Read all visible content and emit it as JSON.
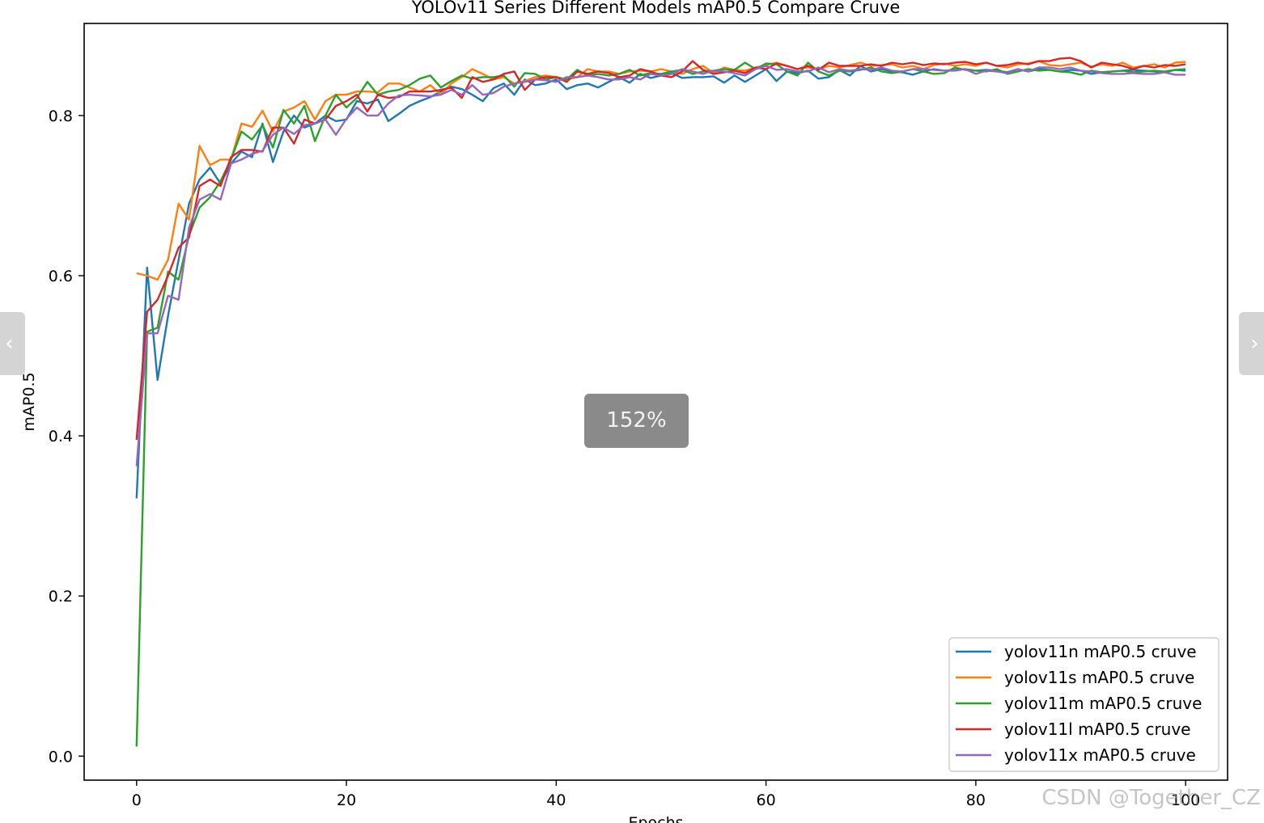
{
  "viewer": {
    "zoom_label": "152%",
    "prev_icon": "chevron-left-icon",
    "next_icon": "chevron-right-icon",
    "prev_glyph": "‹",
    "next_glyph": "›",
    "watermark": "CSDN @Together_CZ"
  },
  "chart_data": {
    "type": "line",
    "title": "YOLOv11 Series Different Models mAP0.5 Compare Cruve",
    "xlabel": "Epochs",
    "ylabel": "mAP0.5",
    "xlim": [
      -5,
      104
    ],
    "ylim": [
      -0.03,
      0.915
    ],
    "xticks": [
      0,
      20,
      40,
      60,
      80,
      100
    ],
    "yticks": [
      0.0,
      0.2,
      0.4,
      0.6,
      0.8
    ],
    "grid": false,
    "legend_position": "bottom-right",
    "series": [
      {
        "name": "yolov11n mAP0.5 cruve",
        "color": "#1f77b4",
        "values": [
          0.322,
          0.61,
          0.47,
          0.55,
          0.62,
          0.69,
          0.72,
          0.735,
          0.715,
          0.74,
          0.755,
          0.748,
          0.79,
          0.742,
          0.78,
          0.8,
          0.785,
          0.79,
          0.8,
          0.793,
          0.795,
          0.818,
          0.815,
          0.82,
          0.793,
          0.802,
          0.812,
          0.818,
          0.823,
          0.83,
          0.836,
          0.833,
          0.826,
          0.818,
          0.834,
          0.84,
          0.826,
          0.845,
          0.838,
          0.84,
          0.845,
          0.833,
          0.838,
          0.84,
          0.835,
          0.842,
          0.848,
          0.841,
          0.852,
          0.847,
          0.85,
          0.853,
          0.847,
          0.848,
          0.848,
          0.849,
          0.841,
          0.85,
          0.842,
          0.85,
          0.858,
          0.843,
          0.855,
          0.853,
          0.856,
          0.846,
          0.848,
          0.857,
          0.85,
          0.862,
          0.855,
          0.858,
          0.855,
          0.854,
          0.851,
          0.855,
          0.858,
          0.856,
          0.857,
          0.858,
          0.856,
          0.857,
          0.856,
          0.854,
          0.858,
          0.855,
          0.858,
          0.857,
          0.855,
          0.857,
          0.856,
          0.852,
          0.854,
          0.855,
          0.856,
          0.857,
          0.856,
          0.855,
          0.854,
          0.857,
          0.856
        ]
      },
      {
        "name": "yolov11s mAP0.5 cruve",
        "color": "#ff7f0e",
        "values": [
          0.603,
          0.6,
          0.595,
          0.62,
          0.69,
          0.67,
          0.762,
          0.738,
          0.745,
          0.745,
          0.79,
          0.786,
          0.806,
          0.78,
          0.805,
          0.81,
          0.818,
          0.795,
          0.818,
          0.826,
          0.826,
          0.83,
          0.83,
          0.829,
          0.84,
          0.84,
          0.835,
          0.83,
          0.838,
          0.826,
          0.84,
          0.848,
          0.858,
          0.852,
          0.845,
          0.848,
          0.84,
          0.843,
          0.848,
          0.85,
          0.848,
          0.845,
          0.848,
          0.858,
          0.855,
          0.855,
          0.852,
          0.855,
          0.856,
          0.855,
          0.858,
          0.855,
          0.852,
          0.858,
          0.862,
          0.853,
          0.86,
          0.857,
          0.856,
          0.86,
          0.863,
          0.866,
          0.862,
          0.858,
          0.86,
          0.858,
          0.862,
          0.86,
          0.863,
          0.866,
          0.862,
          0.863,
          0.864,
          0.86,
          0.862,
          0.858,
          0.863,
          0.865,
          0.862,
          0.864,
          0.862,
          0.866,
          0.862,
          0.86,
          0.864,
          0.865,
          0.868,
          0.863,
          0.862,
          0.864,
          0.866,
          0.861,
          0.864,
          0.862,
          0.866,
          0.86,
          0.862,
          0.864,
          0.86,
          0.866,
          0.867
        ]
      },
      {
        "name": "yolov11m mAP0.5 cruve",
        "color": "#2ca02c",
        "values": [
          0.012,
          0.53,
          0.535,
          0.605,
          0.595,
          0.65,
          0.685,
          0.698,
          0.718,
          0.745,
          0.78,
          0.77,
          0.788,
          0.76,
          0.807,
          0.79,
          0.812,
          0.768,
          0.8,
          0.826,
          0.81,
          0.822,
          0.842,
          0.826,
          0.83,
          0.832,
          0.838,
          0.846,
          0.85,
          0.835,
          0.843,
          0.85,
          0.846,
          0.848,
          0.848,
          0.85,
          0.836,
          0.853,
          0.852,
          0.845,
          0.848,
          0.845,
          0.857,
          0.85,
          0.852,
          0.85,
          0.852,
          0.857,
          0.85,
          0.853,
          0.852,
          0.855,
          0.857,
          0.852,
          0.855,
          0.856,
          0.858,
          0.857,
          0.866,
          0.858,
          0.865,
          0.864,
          0.855,
          0.85,
          0.866,
          0.855,
          0.85,
          0.856,
          0.855,
          0.857,
          0.86,
          0.855,
          0.853,
          0.855,
          0.858,
          0.855,
          0.852,
          0.853,
          0.86,
          0.857,
          0.856,
          0.855,
          0.858,
          0.852,
          0.855,
          0.858,
          0.856,
          0.857,
          0.855,
          0.854,
          0.851,
          0.856,
          0.854,
          0.855,
          0.856,
          0.854,
          0.855,
          0.856,
          0.855,
          0.857,
          0.858
        ]
      },
      {
        "name": "yolov11l mAP0.5 cruve",
        "color": "#d62728",
        "values": [
          0.395,
          0.555,
          0.57,
          0.6,
          0.635,
          0.648,
          0.712,
          0.72,
          0.712,
          0.748,
          0.757,
          0.757,
          0.755,
          0.785,
          0.785,
          0.765,
          0.795,
          0.79,
          0.795,
          0.812,
          0.818,
          0.826,
          0.805,
          0.826,
          0.822,
          0.823,
          0.83,
          0.83,
          0.83,
          0.832,
          0.835,
          0.822,
          0.848,
          0.842,
          0.845,
          0.852,
          0.855,
          0.832,
          0.845,
          0.848,
          0.848,
          0.842,
          0.855,
          0.852,
          0.855,
          0.853,
          0.848,
          0.85,
          0.858,
          0.855,
          0.85,
          0.848,
          0.855,
          0.868,
          0.857,
          0.852,
          0.854,
          0.856,
          0.853,
          0.86,
          0.858,
          0.865,
          0.862,
          0.858,
          0.862,
          0.857,
          0.866,
          0.862,
          0.862,
          0.862,
          0.864,
          0.862,
          0.866,
          0.864,
          0.866,
          0.863,
          0.865,
          0.864,
          0.866,
          0.867,
          0.864,
          0.866,
          0.862,
          0.863,
          0.866,
          0.864,
          0.868,
          0.868,
          0.871,
          0.872,
          0.868,
          0.86,
          0.866,
          0.864,
          0.862,
          0.858,
          0.862,
          0.86,
          0.863,
          0.862,
          0.864
        ]
      },
      {
        "name": "yolov11x mAP0.5 cruve",
        "color": "#9467bd",
        "values": [
          0.362,
          0.528,
          0.528,
          0.575,
          0.57,
          0.66,
          0.695,
          0.702,
          0.695,
          0.74,
          0.745,
          0.752,
          0.756,
          0.776,
          0.785,
          0.777,
          0.788,
          0.79,
          0.795,
          0.776,
          0.796,
          0.81,
          0.8,
          0.8,
          0.815,
          0.825,
          0.826,
          0.825,
          0.824,
          0.826,
          0.832,
          0.826,
          0.838,
          0.826,
          0.828,
          0.836,
          0.84,
          0.842,
          0.845,
          0.844,
          0.842,
          0.848,
          0.848,
          0.85,
          0.848,
          0.845,
          0.845,
          0.848,
          0.845,
          0.852,
          0.85,
          0.852,
          0.858,
          0.855,
          0.852,
          0.856,
          0.855,
          0.853,
          0.85,
          0.858,
          0.862,
          0.857,
          0.858,
          0.855,
          0.855,
          0.86,
          0.854,
          0.858,
          0.856,
          0.858,
          0.857,
          0.86,
          0.856,
          0.855,
          0.858,
          0.858,
          0.857,
          0.856,
          0.856,
          0.858,
          0.852,
          0.856,
          0.855,
          0.853,
          0.858,
          0.855,
          0.86,
          0.86,
          0.858,
          0.86,
          0.856,
          0.855,
          0.853,
          0.852,
          0.852,
          0.853,
          0.852,
          0.852,
          0.854,
          0.851,
          0.851
        ]
      }
    ]
  }
}
